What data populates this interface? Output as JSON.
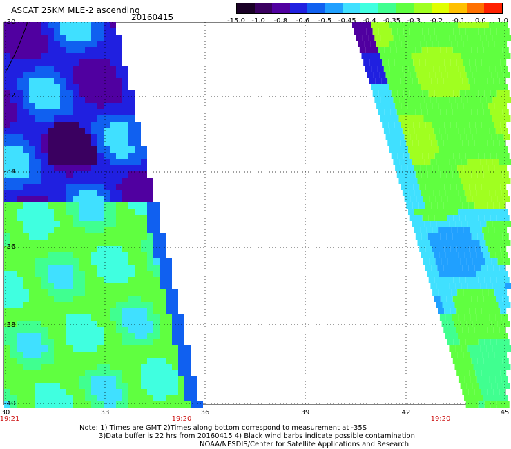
{
  "header": {
    "title": "ASCAT 25KM MLE-2 ascending",
    "date": "20160415"
  },
  "colorbar": {
    "colors": [
      "#1a0026",
      "#3a0060",
      "#5000a0",
      "#2020e0",
      "#1060f0",
      "#20a0ff",
      "#40e0ff",
      "#40ffe0",
      "#40ff90",
      "#60ff40",
      "#a0ff20",
      "#e0ff00",
      "#ffc000",
      "#ff7000",
      "#ff2000"
    ],
    "labels": [
      "-15.0",
      "-1.0",
      "-0.8",
      "-0.6",
      "-0.5",
      "-0.45",
      "-0.4",
      "-0.35",
      "-0.3",
      "-0.2",
      "-0.1",
      "0.0",
      "1.0"
    ]
  },
  "axes": {
    "y_ticks": [
      "-30",
      "-32",
      "-34",
      "-36",
      "-38",
      "-40"
    ],
    "x_ticks": [
      "30",
      "33",
      "36",
      "39",
      "42",
      "45"
    ],
    "time_labels": [
      "19:21",
      "19:20",
      "19:20"
    ]
  },
  "notes": {
    "line1": "Note: 1) Times are GMT 2)Times along bottom correspond to measurement at -35S",
    "line2": "3)Data buffer is 22 hrs from 20160415 4) Black wind barbs indicate possible contamination",
    "line3": "NOAA/NESDIS/Center for Satellite Applications and Research"
  }
}
